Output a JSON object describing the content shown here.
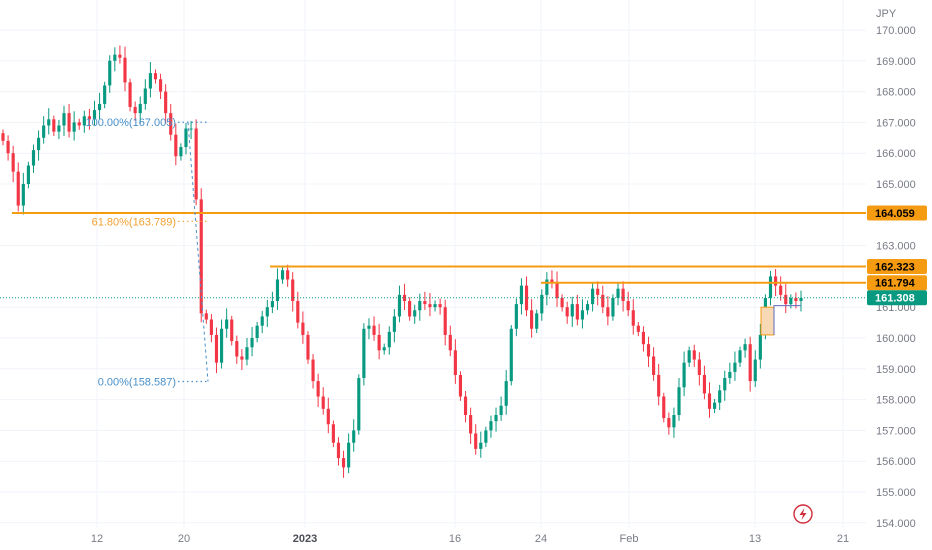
{
  "chart_data": {
    "type": "candlestick",
    "currency": "JPY",
    "ylim": [
      154.0,
      170.8
    ],
    "y_ticks": [
      "170.000",
      "169.000",
      "168.000",
      "167.000",
      "166.000",
      "165.000",
      "163.000",
      "161.000",
      "160.000",
      "159.000",
      "158.000",
      "157.000",
      "156.000",
      "155.000",
      "154.000"
    ],
    "x_ticks": [
      {
        "label": "12",
        "bold": false
      },
      {
        "label": "20",
        "bold": false
      },
      {
        "label": "2023",
        "bold": true
      },
      {
        "label": "16",
        "bold": false
      },
      {
        "label": "24",
        "bold": false
      },
      {
        "label": "Feb",
        "bold": false
      },
      {
        "label": "13",
        "bold": false
      },
      {
        "label": "21",
        "bold": false
      }
    ],
    "closes": [
      166.4,
      166.0,
      165.4,
      164.3,
      165.0,
      165.6,
      166.1,
      166.5,
      166.9,
      167.1,
      166.7,
      166.9,
      167.3,
      166.7,
      167.0,
      166.9,
      167.2,
      167.1,
      167.4,
      167.6,
      168.2,
      169.0,
      169.2,
      169.1,
      168.3,
      167.5,
      167.3,
      167.6,
      168.1,
      168.6,
      168.4,
      168.0,
      167.3,
      166.6,
      165.9,
      166.2,
      166.8,
      166.8,
      164.5,
      160.8,
      160.6,
      160.1,
      159.2,
      160.3,
      160.6,
      159.9,
      159.4,
      159.3,
      159.7,
      160.0,
      160.4,
      160.7,
      161.0,
      161.2,
      161.9,
      162.2,
      161.9,
      161.2,
      160.5,
      160.1,
      159.3,
      158.6,
      158.1,
      157.7,
      157.2,
      156.6,
      156.1,
      155.8,
      156.6,
      157.0,
      158.7,
      160.3,
      160.4,
      160.1,
      159.6,
      159.7,
      160.2,
      160.7,
      161.4,
      161.2,
      160.7,
      160.9,
      161.2,
      161.1,
      161.0,
      161.1,
      161.0,
      160.1,
      159.6,
      158.8,
      158.1,
      157.5,
      156.9,
      156.4,
      156.6,
      157.0,
      157.3,
      157.5,
      157.8,
      158.6,
      160.3,
      161.1,
      161.7,
      160.9,
      160.3,
      160.8,
      161.4,
      161.9,
      161.8,
      161.3,
      161.0,
      160.7,
      161.1,
      160.6,
      160.9,
      161.1,
      161.6,
      161.4,
      161.0,
      160.7,
      161.3,
      161.6,
      161.2,
      160.9,
      160.4,
      160.2,
      159.8,
      159.4,
      158.8,
      158.1,
      157.4,
      157.1,
      157.5,
      158.4,
      159.2,
      159.6,
      159.3,
      158.8,
      158.2,
      157.7,
      157.9,
      158.3,
      158.7,
      158.9,
      159.2,
      159.6,
      159.8,
      158.6,
      159.3,
      160.1,
      161.3,
      162.0,
      161.7,
      161.4,
      161.1,
      161.3,
      161.2,
      161.3
    ],
    "fibonacci": [
      {
        "label": "100.00%(167.005)",
        "value": 167.005,
        "color": "#4a90c8"
      },
      {
        "label": "61.80%(163.789)",
        "value": 163.789,
        "color": "#f0a030"
      },
      {
        "label": "0.00%(158.587)",
        "value": 158.587,
        "color": "#4a90c8"
      }
    ],
    "levels": [
      {
        "label": "164.059",
        "value": 164.059,
        "color": "#f59b12",
        "text_color": "#000000"
      },
      {
        "label": "162.323",
        "value": 162.323,
        "color": "#f59b12",
        "text_color": "#000000"
      },
      {
        "label": "161.794",
        "value": 161.794,
        "color": "#f59b12",
        "text_color": "#000000"
      },
      {
        "label": "161.308",
        "value": 161.308,
        "color": "#089981",
        "text_color": "#ffffff"
      }
    ],
    "colors": {
      "up": "#089981",
      "down": "#f23645",
      "level": "#f59b12",
      "fib": "#4a90c8",
      "grid": "#f0f3fa",
      "axis_text": "#787b86"
    }
  }
}
